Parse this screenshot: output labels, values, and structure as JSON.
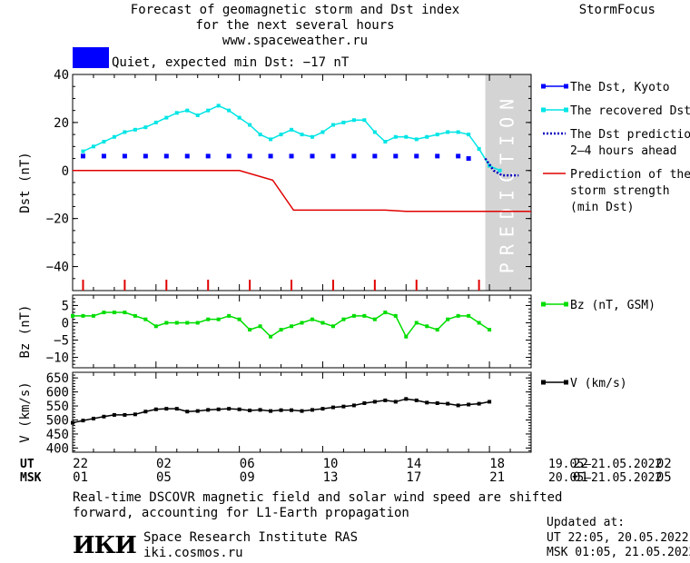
{
  "header": {
    "title_line1": "Forecast of geomagnetic storm and Dst index",
    "title_line2": "for the next several hours",
    "url": "www.spaceweather.ru",
    "brand": "StormFocus"
  },
  "status": {
    "text": "Quiet, expected min Dst: −17 nT",
    "color": "#0000ff"
  },
  "chart_data": [
    {
      "type": "line",
      "panel": "dst",
      "ylabel": "Dst (nT)",
      "ylim": [
        -50,
        40
      ],
      "yticks": [
        40,
        20,
        0,
        -20,
        -40
      ],
      "xlim": [
        22,
        44
      ],
      "prediction_region": {
        "from": 41.8,
        "to": 44,
        "label": "PREDICTION",
        "color": "#d4d4d4"
      },
      "series": [
        {
          "name": "The Dst, Kyoto",
          "color": "#0000ff",
          "style": "points",
          "x": [
            22.5,
            23.5,
            24.5,
            25.5,
            26.5,
            27.5,
            28.5,
            29.5,
            30.5,
            31.5,
            32.5,
            33.5,
            34.5,
            35.5,
            36.5,
            37.5,
            38.5,
            39.5,
            40.5,
            41.0
          ],
          "y": [
            6,
            6,
            6,
            6,
            6,
            6,
            6,
            6,
            6,
            6,
            6,
            6,
            6,
            6,
            6,
            6,
            6,
            6,
            6,
            5
          ]
        },
        {
          "name": "The recovered Dst",
          "color": "#00e5e5",
          "x": [
            22.5,
            23.0,
            23.5,
            24.0,
            24.5,
            25.0,
            25.5,
            26.0,
            26.5,
            27.0,
            27.5,
            28.0,
            28.5,
            29.0,
            29.5,
            30.0,
            30.5,
            31.0,
            31.5,
            32.0,
            32.5,
            33.0,
            33.5,
            34.0,
            34.5,
            35.0,
            35.5,
            36.0,
            36.5,
            37.0,
            37.5,
            38.0,
            38.5,
            39.0,
            39.5,
            40.0,
            40.5,
            41.0,
            41.5,
            42.0,
            42.5
          ],
          "y": [
            8,
            10,
            12,
            14,
            16,
            17,
            18,
            20,
            22,
            24,
            25,
            23,
            25,
            27,
            25,
            22,
            19,
            15,
            13,
            15,
            17,
            15,
            14,
            16,
            19,
            20,
            21,
            21,
            16,
            12,
            14,
            14,
            13,
            14,
            15,
            16,
            16,
            15,
            9,
            2,
            0
          ]
        },
        {
          "name": "The Dst prediction 2–4 hours ahead",
          "color": "#0000c0",
          "style": "dotted",
          "x": [
            41.8,
            42.2,
            42.6,
            43.0,
            43.4
          ],
          "y": [
            5,
            0,
            -2,
            -2,
            -2
          ]
        },
        {
          "name": "Prediction of the storm strength (min Dst)",
          "color": "#e00000",
          "x": [
            22,
            30,
            31.6,
            32.6,
            37.0,
            38.0,
            44
          ],
          "y": [
            0,
            0,
            -4,
            -16.5,
            -16.5,
            -17,
            -17
          ]
        }
      ],
      "markers": {
        "color": "#e00000",
        "x": [
          22.5,
          24.5,
          26.5,
          28.5,
          30.5,
          32.5,
          34.5,
          36.5,
          38.5,
          41.5
        ]
      },
      "legend_placement": "right"
    },
    {
      "type": "line",
      "panel": "bz",
      "ylabel": "Bz (nT)",
      "ylim": [
        -13,
        8
      ],
      "yticks": [
        5,
        0,
        -5,
        -10
      ],
      "xlim": [
        22,
        44
      ],
      "series": [
        {
          "name": "Bz (nT, GSM)",
          "color": "#00dd00",
          "x": [
            22.0,
            22.5,
            23.0,
            23.5,
            24.0,
            24.5,
            25.0,
            25.5,
            26.0,
            26.5,
            27.0,
            27.5,
            28.0,
            28.5,
            29.0,
            29.5,
            30.0,
            30.5,
            31.0,
            31.5,
            32.0,
            32.5,
            33.0,
            33.5,
            34.0,
            34.5,
            35.0,
            35.5,
            36.0,
            36.5,
            37.0,
            37.5,
            38.0,
            38.5,
            39.0,
            39.5,
            40.0,
            40.5,
            41.0,
            41.5,
            42.0
          ],
          "y": [
            2,
            2,
            2,
            3,
            3,
            3,
            2,
            1,
            -1,
            0,
            0,
            0,
            0,
            1,
            1,
            2,
            1,
            -2,
            -1,
            -4,
            -2,
            -1,
            0,
            1,
            0,
            -1,
            1,
            2,
            2,
            1,
            3,
            2,
            -4,
            0,
            -1,
            -2,
            1,
            2,
            2,
            0,
            -2
          ]
        }
      ],
      "legend_placement": "right"
    },
    {
      "type": "line",
      "panel": "v",
      "ylabel": "V (km/s)",
      "ylim": [
        385,
        670
      ],
      "yticks": [
        650,
        600,
        550,
        500,
        450,
        400
      ],
      "xlim": [
        22,
        44
      ],
      "series": [
        {
          "name": "V (km/s)",
          "color": "#000000",
          "x": [
            22.0,
            22.5,
            23.0,
            23.5,
            24.0,
            24.5,
            25.0,
            25.5,
            26.0,
            26.5,
            27.0,
            27.5,
            28.0,
            28.5,
            29.0,
            29.5,
            30.0,
            30.5,
            31.0,
            31.5,
            32.0,
            32.5,
            33.0,
            33.5,
            34.0,
            34.5,
            35.0,
            35.5,
            36.0,
            36.5,
            37.0,
            37.5,
            38.0,
            38.5,
            39.0,
            39.5,
            40.0,
            40.5,
            41.0,
            41.5,
            42.0
          ],
          "y": [
            490,
            498,
            505,
            512,
            518,
            518,
            520,
            530,
            538,
            540,
            540,
            530,
            532,
            536,
            538,
            540,
            538,
            534,
            536,
            532,
            535,
            535,
            532,
            536,
            540,
            545,
            548,
            552,
            560,
            565,
            570,
            565,
            575,
            570,
            562,
            560,
            558,
            552,
            555,
            558,
            565
          ]
        }
      ],
      "legend_placement": "right"
    }
  ],
  "x_axis": {
    "ut_label": "UT",
    "msk_label": "MSK",
    "ut_ticks": [
      "22",
      "02",
      "06",
      "10",
      "14",
      "18",
      "22",
      "02"
    ],
    "msk_ticks": [
      "01",
      "05",
      "09",
      "13",
      "17",
      "21",
      "01",
      "05"
    ],
    "ut_range": "19.05–21.05.2022",
    "msk_range": "20.05–21.05.2022"
  },
  "footer": {
    "note_line1": "Real-time DSCOVR magnetic field and solar wind speed are shifted",
    "note_line2": "forward, accounting for L1-Earth propagation",
    "logo": "ИКИ",
    "institute": "Space Research Institute RAS",
    "site": "iki.cosmos.ru",
    "updated_label": "Updated at:",
    "updated_ut": "UT   22:05, 20.05.2022",
    "updated_msk": "MSK 01:05, 21.05.2022"
  }
}
